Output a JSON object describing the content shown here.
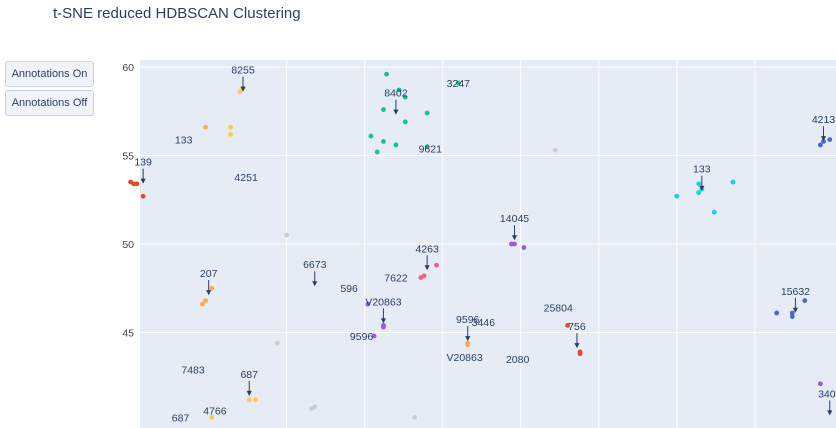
{
  "title": "t-SNE reduced HDBSCAN Clustering",
  "buttons": {
    "on": "Annotations On",
    "off": "Annotations Off"
  },
  "colors": {
    "plot_bg": "#e5ecf6",
    "grid": "#ffffff",
    "text": "#2a3f5f",
    "noise": "#cccccc",
    "red": "#e04a2c",
    "orange": "#ffa94d",
    "yellow": "#ffc94a",
    "green": "#14c48a",
    "cyan": "#19cfe0",
    "blue": "#4f63d8",
    "purple": "#9b59e0",
    "pink": "#f55c8a"
  },
  "chart_data": {
    "type": "scatter",
    "title": "t-SNE reduced HDBSCAN Clustering",
    "xlabel": "",
    "ylabel": "",
    "yticks": [
      45,
      50,
      55,
      60
    ],
    "ylim": [
      39.6,
      60.4
    ],
    "xlim": [
      -27.1,
      -4.8
    ],
    "xgrid": [
      -22.4,
      -19.9,
      -17.4,
      -14.9,
      -12.4,
      -9.9,
      -7.4
    ],
    "grid": true,
    "points": [
      {
        "x": -27.4,
        "y": 53.5,
        "c": "red"
      },
      {
        "x": -27.3,
        "y": 53.4,
        "c": "red"
      },
      {
        "x": -27.2,
        "y": 53.4,
        "c": "red"
      },
      {
        "x": -27.0,
        "y": 52.7,
        "c": "red"
      },
      {
        "x": -13.4,
        "y": 45.4,
        "c": "red"
      },
      {
        "x": -13.0,
        "y": 43.9,
        "c": "red"
      },
      {
        "x": -13.0,
        "y": 43.8,
        "c": "red"
      },
      {
        "x": -25.0,
        "y": 56.6,
        "c": "orange"
      },
      {
        "x": -25.1,
        "y": 46.6,
        "c": "orange"
      },
      {
        "x": -25.0,
        "y": 46.8,
        "c": "orange"
      },
      {
        "x": -24.8,
        "y": 47.5,
        "c": "orange"
      },
      {
        "x": -16.6,
        "y": 44.4,
        "c": "orange"
      },
      {
        "x": -16.6,
        "y": 44.3,
        "c": "orange"
      },
      {
        "x": -24.2,
        "y": 56.6,
        "c": "yellow"
      },
      {
        "x": -24.2,
        "y": 56.2,
        "c": "yellow"
      },
      {
        "x": -23.9,
        "y": 58.6,
        "c": "yellow"
      },
      {
        "x": -23.8,
        "y": 58.8,
        "c": "yellow"
      },
      {
        "x": -23.6,
        "y": 41.2,
        "c": "yellow"
      },
      {
        "x": -23.4,
        "y": 41.2,
        "c": "yellow"
      },
      {
        "x": -24.8,
        "y": 40.2,
        "c": "yellow"
      },
      {
        "x": -19.2,
        "y": 59.6,
        "c": "green"
      },
      {
        "x": -18.8,
        "y": 58.7,
        "c": "green"
      },
      {
        "x": -18.6,
        "y": 58.3,
        "c": "green"
      },
      {
        "x": -19.3,
        "y": 57.6,
        "c": "green"
      },
      {
        "x": -17.9,
        "y": 57.4,
        "c": "green"
      },
      {
        "x": -18.6,
        "y": 56.9,
        "c": "green"
      },
      {
        "x": -19.7,
        "y": 56.1,
        "c": "green"
      },
      {
        "x": -19.3,
        "y": 55.8,
        "c": "green"
      },
      {
        "x": -18.9,
        "y": 55.6,
        "c": "green"
      },
      {
        "x": -19.5,
        "y": 55.2,
        "c": "green"
      },
      {
        "x": -17.9,
        "y": 55.5,
        "c": "green"
      },
      {
        "x": -16.9,
        "y": 59.1,
        "c": "green"
      },
      {
        "x": -9.9,
        "y": 52.7,
        "c": "cyan"
      },
      {
        "x": -9.2,
        "y": 53.4,
        "c": "cyan"
      },
      {
        "x": -9.2,
        "y": 52.9,
        "c": "cyan"
      },
      {
        "x": -9.1,
        "y": 53.1,
        "c": "cyan"
      },
      {
        "x": -8.7,
        "y": 51.8,
        "c": "cyan"
      },
      {
        "x": -8.1,
        "y": 53.5,
        "c": "cyan"
      },
      {
        "x": -5.3,
        "y": 55.6,
        "c": "blue"
      },
      {
        "x": -5.2,
        "y": 55.8,
        "c": "blue"
      },
      {
        "x": -5.0,
        "y": 55.9,
        "c": "blue"
      },
      {
        "x": -6.7,
        "y": 46.1,
        "c": "blue"
      },
      {
        "x": -6.2,
        "y": 46.1,
        "c": "blue"
      },
      {
        "x": -6.2,
        "y": 45.9,
        "c": "blue"
      },
      {
        "x": -5.8,
        "y": 46.8,
        "c": "blue"
      },
      {
        "x": -19.3,
        "y": 45.4,
        "c": "purple"
      },
      {
        "x": -19.3,
        "y": 45.3,
        "c": "purple"
      },
      {
        "x": -15.2,
        "y": 50.0,
        "c": "purple"
      },
      {
        "x": -15.1,
        "y": 50.0,
        "c": "purple"
      },
      {
        "x": -14.8,
        "y": 49.8,
        "c": "purple"
      },
      {
        "x": -5.3,
        "y": 42.1,
        "c": "purple"
      },
      {
        "x": -19.6,
        "y": 44.8,
        "c": "purple"
      },
      {
        "x": -19.8,
        "y": 46.6,
        "c": "purple"
      },
      {
        "x": -18.1,
        "y": 48.1,
        "c": "pink"
      },
      {
        "x": -18.0,
        "y": 48.2,
        "c": "pink"
      },
      {
        "x": -17.6,
        "y": 48.8,
        "c": "pink"
      },
      {
        "x": -22.4,
        "y": 50.5,
        "c": "noise"
      },
      {
        "x": -22.7,
        "y": 44.4,
        "c": "noise"
      },
      {
        "x": -21.6,
        "y": 40.7,
        "c": "noise"
      },
      {
        "x": -21.5,
        "y": 40.8,
        "c": "noise"
      },
      {
        "x": -18.3,
        "y": 40.2,
        "c": "noise"
      },
      {
        "x": -13.8,
        "y": 55.3,
        "c": "noise"
      }
    ],
    "annotations": [
      {
        "text": "8255",
        "x": -23.8,
        "y": 58.5,
        "arrow": true
      },
      {
        "text": "133",
        "x": -25.7,
        "y": 55.9,
        "arrow": false
      },
      {
        "text": "139",
        "x": -27.0,
        "y": 53.3,
        "arrow": true
      },
      {
        "text": "4251",
        "x": -23.7,
        "y": 53.8,
        "arrow": false
      },
      {
        "text": "8402",
        "x": -18.9,
        "y": 57.2,
        "arrow": true
      },
      {
        "text": "3247",
        "x": -16.9,
        "y": 59.1,
        "arrow": false
      },
      {
        "text": "9621",
        "x": -17.8,
        "y": 55.4,
        "arrow": false
      },
      {
        "text": "207",
        "x": -24.9,
        "y": 47.0,
        "arrow": true
      },
      {
        "text": "6673",
        "x": -21.5,
        "y": 47.5,
        "arrow": true
      },
      {
        "text": "596",
        "x": -20.4,
        "y": 47.5,
        "arrow": false
      },
      {
        "text": "7622",
        "x": -18.9,
        "y": 48.1,
        "arrow": false
      },
      {
        "text": "4263",
        "x": -17.9,
        "y": 48.4,
        "arrow": true
      },
      {
        "text": "V20863",
        "x": -19.3,
        "y": 45.4,
        "arrow": true
      },
      {
        "text": "9596",
        "x": -20.0,
        "y": 44.8,
        "arrow": false
      },
      {
        "text": "9596",
        "x": -16.6,
        "y": 44.4,
        "arrow": true
      },
      {
        "text": "3446",
        "x": -16.1,
        "y": 45.6,
        "arrow": false
      },
      {
        "text": "V20863",
        "x": -16.7,
        "y": 43.6,
        "arrow": false
      },
      {
        "text": "2080",
        "x": -15.0,
        "y": 43.5,
        "arrow": false
      },
      {
        "text": "14045",
        "x": -15.1,
        "y": 50.1,
        "arrow": true
      },
      {
        "text": "133",
        "x": -9.1,
        "y": 52.9,
        "arrow": true
      },
      {
        "text": "4213",
        "x": -5.2,
        "y": 55.7,
        "arrow": true
      },
      {
        "text": "15632",
        "x": -6.1,
        "y": 46.0,
        "arrow": true
      },
      {
        "text": "25804",
        "x": -13.7,
        "y": 46.4,
        "arrow": false
      },
      {
        "text": "756",
        "x": -13.1,
        "y": 44.0,
        "arrow": true
      },
      {
        "text": "7483",
        "x": -25.4,
        "y": 42.9,
        "arrow": false
      },
      {
        "text": "687",
        "x": -23.6,
        "y": 41.3,
        "arrow": true
      },
      {
        "text": "4766",
        "x": -24.7,
        "y": 40.6,
        "arrow": false
      },
      {
        "text": "687",
        "x": -25.8,
        "y": 40.2,
        "arrow": false
      },
      {
        "text": "3408",
        "x": -5.0,
        "y": 40.2,
        "arrow": true
      }
    ]
  }
}
